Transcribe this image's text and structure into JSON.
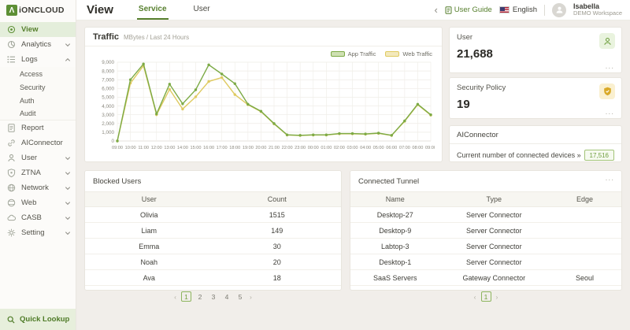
{
  "logo": {
    "mark": "Λ",
    "text": "iONCLOUD"
  },
  "header": {
    "title": "View",
    "tabs": [
      {
        "label": "Service",
        "active": true
      },
      {
        "label": "User",
        "active": false
      }
    ],
    "collapse_icon": "‹",
    "user_guide": "User Guide",
    "language": "English",
    "account": {
      "name": "Isabella",
      "workspace": "DEMO Workspace"
    }
  },
  "sidebar": {
    "items": [
      {
        "label": "View",
        "icon": "view-icon",
        "active": true
      },
      {
        "label": "Analytics",
        "icon": "analytics-icon",
        "chevron": "down"
      },
      {
        "label": "Logs",
        "icon": "logs-icon",
        "chevron": "up"
      },
      {
        "label": "Access",
        "sub": true
      },
      {
        "label": "Security",
        "sub": true
      },
      {
        "label": "Auth",
        "sub": true
      },
      {
        "label": "Audit",
        "sub": true,
        "group_end": true
      },
      {
        "label": "Report",
        "icon": "report-icon"
      },
      {
        "label": "AIConnector",
        "icon": "aiconnector-icon"
      },
      {
        "label": "User",
        "icon": "user-icon",
        "chevron": "down"
      },
      {
        "label": "ZTNA",
        "icon": "ztna-icon",
        "chevron": "down"
      },
      {
        "label": "Network",
        "icon": "network-icon",
        "chevron": "down"
      },
      {
        "label": "Web",
        "icon": "web-icon",
        "chevron": "down"
      },
      {
        "label": "CASB",
        "icon": "casb-icon",
        "chevron": "down"
      },
      {
        "label": "Setting",
        "icon": "setting-icon",
        "chevron": "down"
      }
    ],
    "quick_lookup": "Quick Lookup"
  },
  "traffic_card": {
    "title": "Traffic",
    "subtitle": "MBytes / Last 24 Hours"
  },
  "chart_data": {
    "type": "line",
    "title": "Traffic",
    "subtitle": "MBytes / Last 24 Hours",
    "x": [
      "09:00",
      "10:00",
      "11:00",
      "12:00",
      "13:00",
      "14:00",
      "15:00",
      "16:00",
      "17:00",
      "18:00",
      "19:00",
      "20:00",
      "21:00",
      "22:00",
      "23:00",
      "00:00",
      "01:00",
      "02:00",
      "03:00",
      "04:00",
      "05:00",
      "06:00",
      "07:00",
      "08:00",
      "09:00"
    ],
    "ylim": [
      0,
      9000
    ],
    "ytick_step": 1000,
    "grid": true,
    "legend_position": "top-right",
    "series": [
      {
        "name": "Web Traffic",
        "color": "#dfca60",
        "fill": "#f3e9bc",
        "values": [
          0,
          6600,
          8600,
          3000,
          5900,
          3650,
          5050,
          6800,
          7250,
          5300,
          4150,
          3350,
          1950,
          680,
          630,
          680,
          680,
          820,
          820,
          780,
          870,
          630,
          2250,
          4150,
          2950
        ]
      },
      {
        "name": "App Traffic",
        "color": "#7caa45",
        "fill": "#cfe0b3",
        "values": [
          0,
          7000,
          8800,
          3100,
          6500,
          4250,
          5850,
          8700,
          7650,
          6550,
          4200,
          3400,
          2000,
          700,
          650,
          700,
          700,
          850,
          850,
          800,
          900,
          650,
          2300,
          4200,
          3000
        ]
      }
    ],
    "legend_order": [
      "App Traffic",
      "Web Traffic"
    ]
  },
  "stat_cards": {
    "user": {
      "title": "User",
      "value": "21,688",
      "menu": "...",
      "icon": "person-icon"
    },
    "security_policy": {
      "title": "Security Policy",
      "value": "19",
      "menu": "...",
      "icon": "shield-check-icon"
    }
  },
  "aiconnector_card": {
    "title": "AIConnector",
    "label": "Current number of connected devices »",
    "badge": "17,516"
  },
  "blocked_users": {
    "title": "Blocked Users",
    "columns": [
      "User",
      "Count"
    ],
    "rows": [
      [
        "Olivia",
        "1515"
      ],
      [
        "Liam",
        "149"
      ],
      [
        "Emma",
        "30"
      ],
      [
        "Noah",
        "20"
      ],
      [
        "Ava",
        "18"
      ]
    ],
    "pagination": {
      "prev": "‹",
      "pages": [
        "1",
        "2",
        "3",
        "4",
        "5"
      ],
      "active": "1",
      "next": "›"
    }
  },
  "connected_tunnel": {
    "title": "Connected Tunnel",
    "menu": "...",
    "columns": [
      "Name",
      "Type",
      "Edge"
    ],
    "rows": [
      [
        "Desktop-27",
        "Server Connector",
        ""
      ],
      [
        "Desktop-9",
        "Server Connector",
        ""
      ],
      [
        "Labtop-3",
        "Server Connector",
        ""
      ],
      [
        "Desktop-1",
        "Server Connector",
        ""
      ],
      [
        "SaaS Servers",
        "Gateway Connector",
        "Seoul"
      ]
    ],
    "pagination": {
      "prev": "‹",
      "pages": [
        "1"
      ],
      "active": "1",
      "next": "›"
    }
  }
}
